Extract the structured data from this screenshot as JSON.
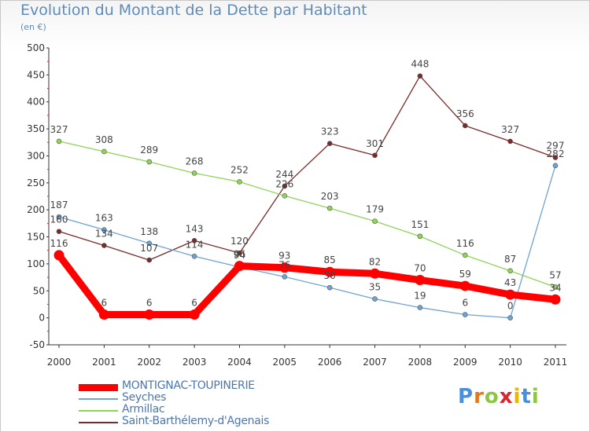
{
  "title": "Evolution du Montant de la Dette par Habitant",
  "subtitle": "(en €)",
  "logo_text": "Proxiti",
  "chart_data": {
    "type": "line",
    "title": "Evolution du Montant de la Dette par Habitant",
    "ylabel": "(en €)",
    "ylim": [
      -50,
      500
    ],
    "yticks": [
      -50,
      0,
      50,
      100,
      150,
      200,
      250,
      300,
      350,
      400,
      450,
      500
    ],
    "grid": false,
    "legend_position": "bottom-left",
    "categories": [
      "2000",
      "2001",
      "2002",
      "2003",
      "2004",
      "2005",
      "2006",
      "2007",
      "2008",
      "2009",
      "2010",
      "2011"
    ],
    "series": [
      {
        "name": "MONTIGNAC-TOUPINERIE",
        "color": "#ff0000",
        "values": [
          116,
          6,
          6,
          6,
          96,
          93,
          85,
          82,
          70,
          59,
          43,
          34
        ]
      },
      {
        "name": "Seyches",
        "color": "#6fa3d4",
        "values": [
          187,
          163,
          138,
          114,
          94,
          76,
          56,
          35,
          19,
          6,
          0,
          282
        ]
      },
      {
        "name": "Armillac",
        "color": "#8fd456",
        "values": [
          327,
          308,
          289,
          268,
          252,
          226,
          203,
          179,
          151,
          116,
          87,
          57
        ]
      },
      {
        "name": "Saint-Barthélemy-d'Agenais",
        "color": "#7a2a2a",
        "values": [
          160,
          134,
          107,
          143,
          120,
          244,
          323,
          301,
          448,
          356,
          327,
          297
        ]
      }
    ]
  }
}
